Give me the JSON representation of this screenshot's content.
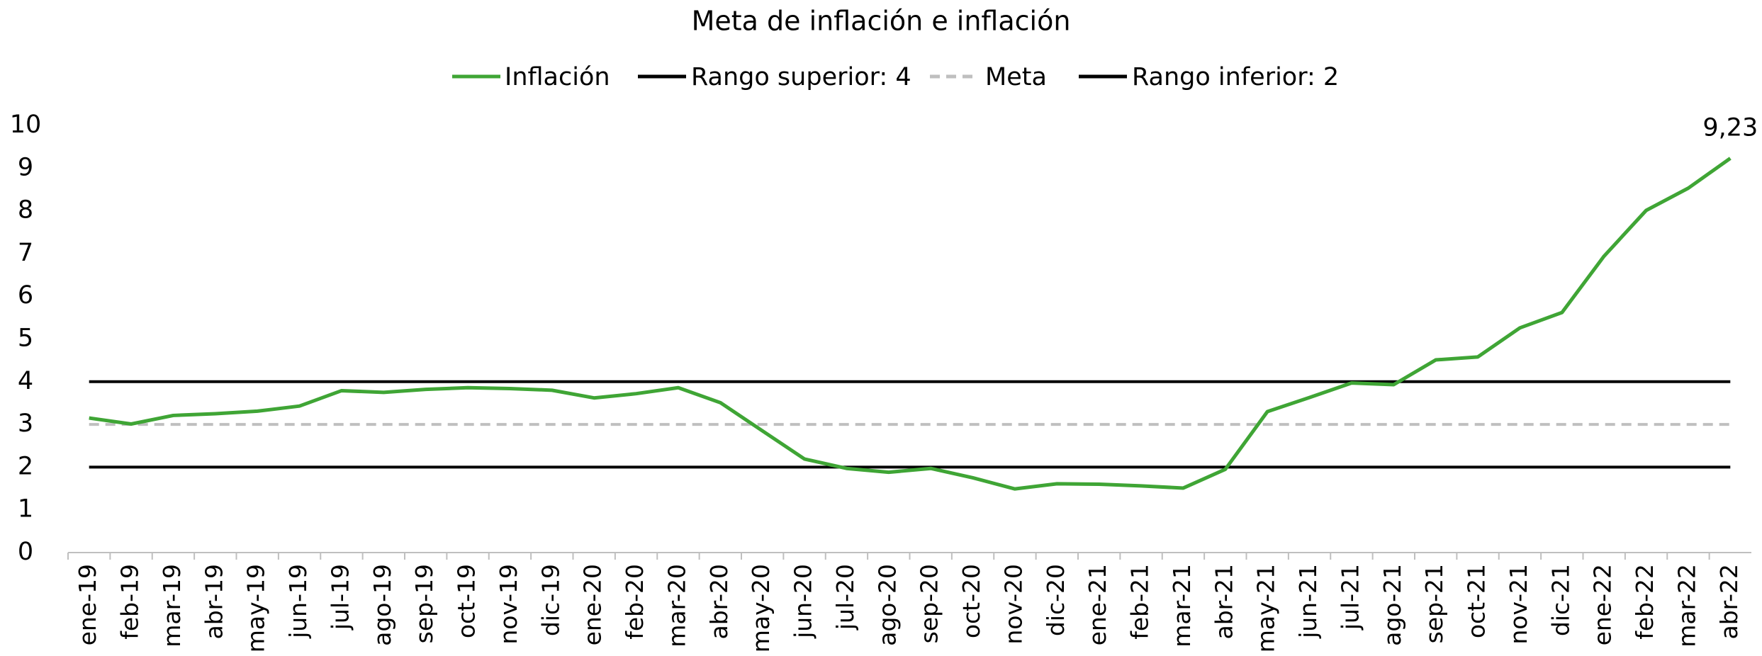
{
  "chart_data": {
    "type": "line",
    "title": "Meta de inflación e inflación",
    "categories": [
      "ene-19",
      "feb-19",
      "mar-19",
      "abr-19",
      "may-19",
      "jun-19",
      "jul-19",
      "ago-19",
      "sep-19",
      "oct-19",
      "nov-19",
      "dic-19",
      "ene-20",
      "feb-20",
      "mar-20",
      "abr-20",
      "may-20",
      "jun-20",
      "jul-20",
      "ago-20",
      "sep-20",
      "oct-20",
      "nov-20",
      "dic-20",
      "ene-21",
      "feb-21",
      "mar-21",
      "abr-21",
      "may-21",
      "jun-21",
      "jul-21",
      "ago-21",
      "sep-21",
      "oct-21",
      "nov-21",
      "dic-21",
      "ene-22",
      "feb-22",
      "mar-22",
      "abr-22"
    ],
    "series": [
      {
        "name": "Inflación",
        "color": "#3fa535",
        "dash": false,
        "values": [
          3.15,
          3.01,
          3.21,
          3.25,
          3.31,
          3.43,
          3.79,
          3.75,
          3.82,
          3.86,
          3.84,
          3.8,
          3.62,
          3.72,
          3.86,
          3.51,
          2.85,
          2.19,
          1.97,
          1.88,
          1.97,
          1.75,
          1.49,
          1.61,
          1.6,
          1.56,
          1.51,
          1.95,
          3.3,
          3.63,
          3.97,
          3.93,
          4.51,
          4.58,
          5.26,
          5.62,
          6.94,
          8.01,
          8.53,
          9.23
        ],
        "value_labels": [
          null,
          null,
          null,
          null,
          null,
          null,
          null,
          null,
          null,
          null,
          null,
          null,
          null,
          null,
          null,
          null,
          null,
          null,
          null,
          null,
          null,
          null,
          null,
          null,
          null,
          null,
          null,
          null,
          null,
          null,
          null,
          null,
          null,
          null,
          null,
          null,
          null,
          null,
          null,
          "9,23"
        ]
      },
      {
        "name": "Rango superior: 4",
        "color": "#000000",
        "dash": false,
        "values": [
          4,
          4,
          4,
          4,
          4,
          4,
          4,
          4,
          4,
          4,
          4,
          4,
          4,
          4,
          4,
          4,
          4,
          4,
          4,
          4,
          4,
          4,
          4,
          4,
          4,
          4,
          4,
          4,
          4,
          4,
          4,
          4,
          4,
          4,
          4,
          4,
          4,
          4,
          4,
          4
        ]
      },
      {
        "name": "Meta",
        "color": "#bfbfbf",
        "dash": true,
        "values": [
          3,
          3,
          3,
          3,
          3,
          3,
          3,
          3,
          3,
          3,
          3,
          3,
          3,
          3,
          3,
          3,
          3,
          3,
          3,
          3,
          3,
          3,
          3,
          3,
          3,
          3,
          3,
          3,
          3,
          3,
          3,
          3,
          3,
          3,
          3,
          3,
          3,
          3,
          3,
          3
        ]
      },
      {
        "name": "Rango inferior: 2",
        "color": "#000000",
        "dash": false,
        "values": [
          2,
          2,
          2,
          2,
          2,
          2,
          2,
          2,
          2,
          2,
          2,
          2,
          2,
          2,
          2,
          2,
          2,
          2,
          2,
          2,
          2,
          2,
          2,
          2,
          2,
          2,
          2,
          2,
          2,
          2,
          2,
          2,
          2,
          2,
          2,
          2,
          2,
          2,
          2,
          2
        ]
      }
    ],
    "ylim": [
      0,
      10
    ],
    "yticks": [
      0,
      1,
      2,
      3,
      4,
      5,
      6,
      7,
      8,
      9,
      10
    ],
    "grid": false,
    "legend": "top"
  }
}
